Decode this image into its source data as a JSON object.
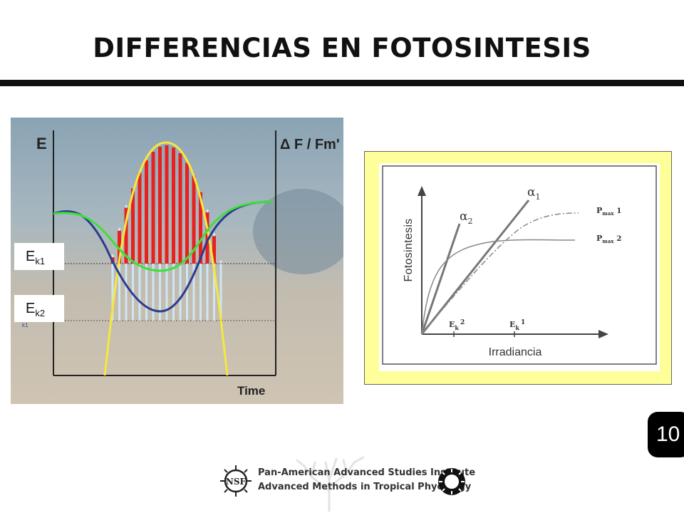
{
  "title": "DIFFERENCIAS EN FOTOSINTESIS",
  "left_chart": {
    "y_label": "E",
    "y2_label": "Δ F / Fm'",
    "x_label": "Time",
    "ek1": {
      "main": "E",
      "sub": "k1"
    },
    "ek2": {
      "main": "E",
      "sub": "k2"
    },
    "small_mark": "k1"
  },
  "right_chart": {
    "y_label": "Fotosintesis",
    "x_label": "Irradiancia",
    "alpha1": {
      "main": "α",
      "sub": "1"
    },
    "alpha2": {
      "main": "α",
      "sub": "2"
    },
    "pmax1": {
      "main": "P",
      "sub": "max",
      "num": "1"
    },
    "pmax2": {
      "main": "P",
      "sub": "max",
      "num": "2"
    },
    "ek2": {
      "main": "E",
      "sub": "k",
      "num": "2"
    },
    "ek1": {
      "main": "E",
      "sub": "k",
      "num": "1"
    }
  },
  "page_number": "10",
  "footer": {
    "line1": "Pan-American Advanced Studies Institute",
    "line2": "Advanced Methods in Tropical Phycology",
    "nsf": "NSF"
  },
  "colors": {
    "yellow_panel": "#ffff99",
    "red_bars": "#e8201e",
    "blue_curve": "#2d3a8f",
    "green_curve": "#3fe03a",
    "yellow_curve": "#f4e840"
  }
}
